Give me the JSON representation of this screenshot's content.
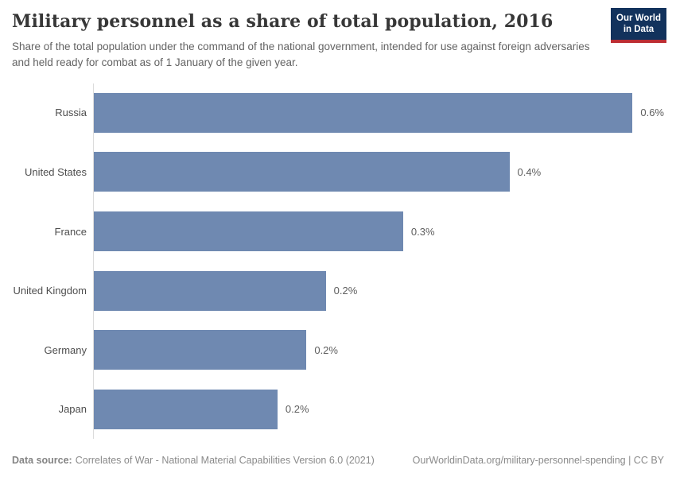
{
  "header": {
    "title": "Military personnel as a share of total population, 2016",
    "subtitle": "Share of the total population under the command of the national government, intended for use against foreign adversaries and held ready for combat as of 1 January of the given year."
  },
  "logo": {
    "line1": "Our World",
    "line2": "in Data",
    "bg_color": "#12325c",
    "accent_color": "#bc2d33"
  },
  "chart_data": {
    "type": "bar",
    "orientation": "horizontal",
    "title": "Military personnel as a share of total population, 2016",
    "categories": [
      "Russia",
      "United States",
      "France",
      "United Kingdom",
      "Germany",
      "Japan"
    ],
    "values": [
      0.56,
      0.43,
      0.32,
      0.24,
      0.22,
      0.19
    ],
    "value_labels": [
      "0.6%",
      "0.4%",
      "0.3%",
      "0.2%",
      "0.2%",
      "0.2%"
    ],
    "unit": "%",
    "xlim": [
      0,
      0.59
    ],
    "grid": false,
    "legend": "none",
    "bar_color": "#6f89b1"
  },
  "footer": {
    "data_source_label": "Data source:",
    "data_source_text": "Correlates of War - National Material Capabilities Version 6.0 (2021)",
    "attribution": "OurWorldinData.org/military-personnel-spending | CC BY"
  }
}
